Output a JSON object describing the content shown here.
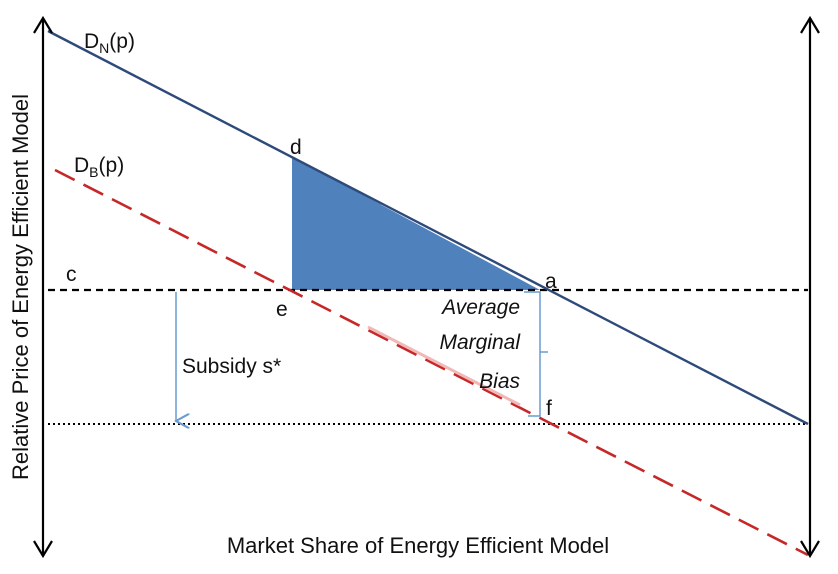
{
  "diagram": {
    "curves": {
      "dn": {
        "letter": "D",
        "subscript": "N",
        "suffix": "(p)"
      },
      "db": {
        "letter": "D",
        "subscript": "B",
        "suffix": "(p)"
      }
    },
    "points": {
      "a": "a",
      "c": "c",
      "d": "d",
      "e": "e",
      "f": "f"
    },
    "subsidy_label": "Subsidy s*",
    "bias_label": [
      "Average",
      "Marginal",
      "Bias"
    ],
    "x_axis_label": "Market Share of Energy Efficient Model",
    "y_axis_label": "Relative Price of Energy Efficient Model",
    "colors": {
      "demand_normal": "#2e4a7a",
      "demand_biased": "#c62828",
      "deadweight_fill": "#4f81bd",
      "bracket": "#6a9bd1",
      "axes": "#000000"
    }
  }
}
